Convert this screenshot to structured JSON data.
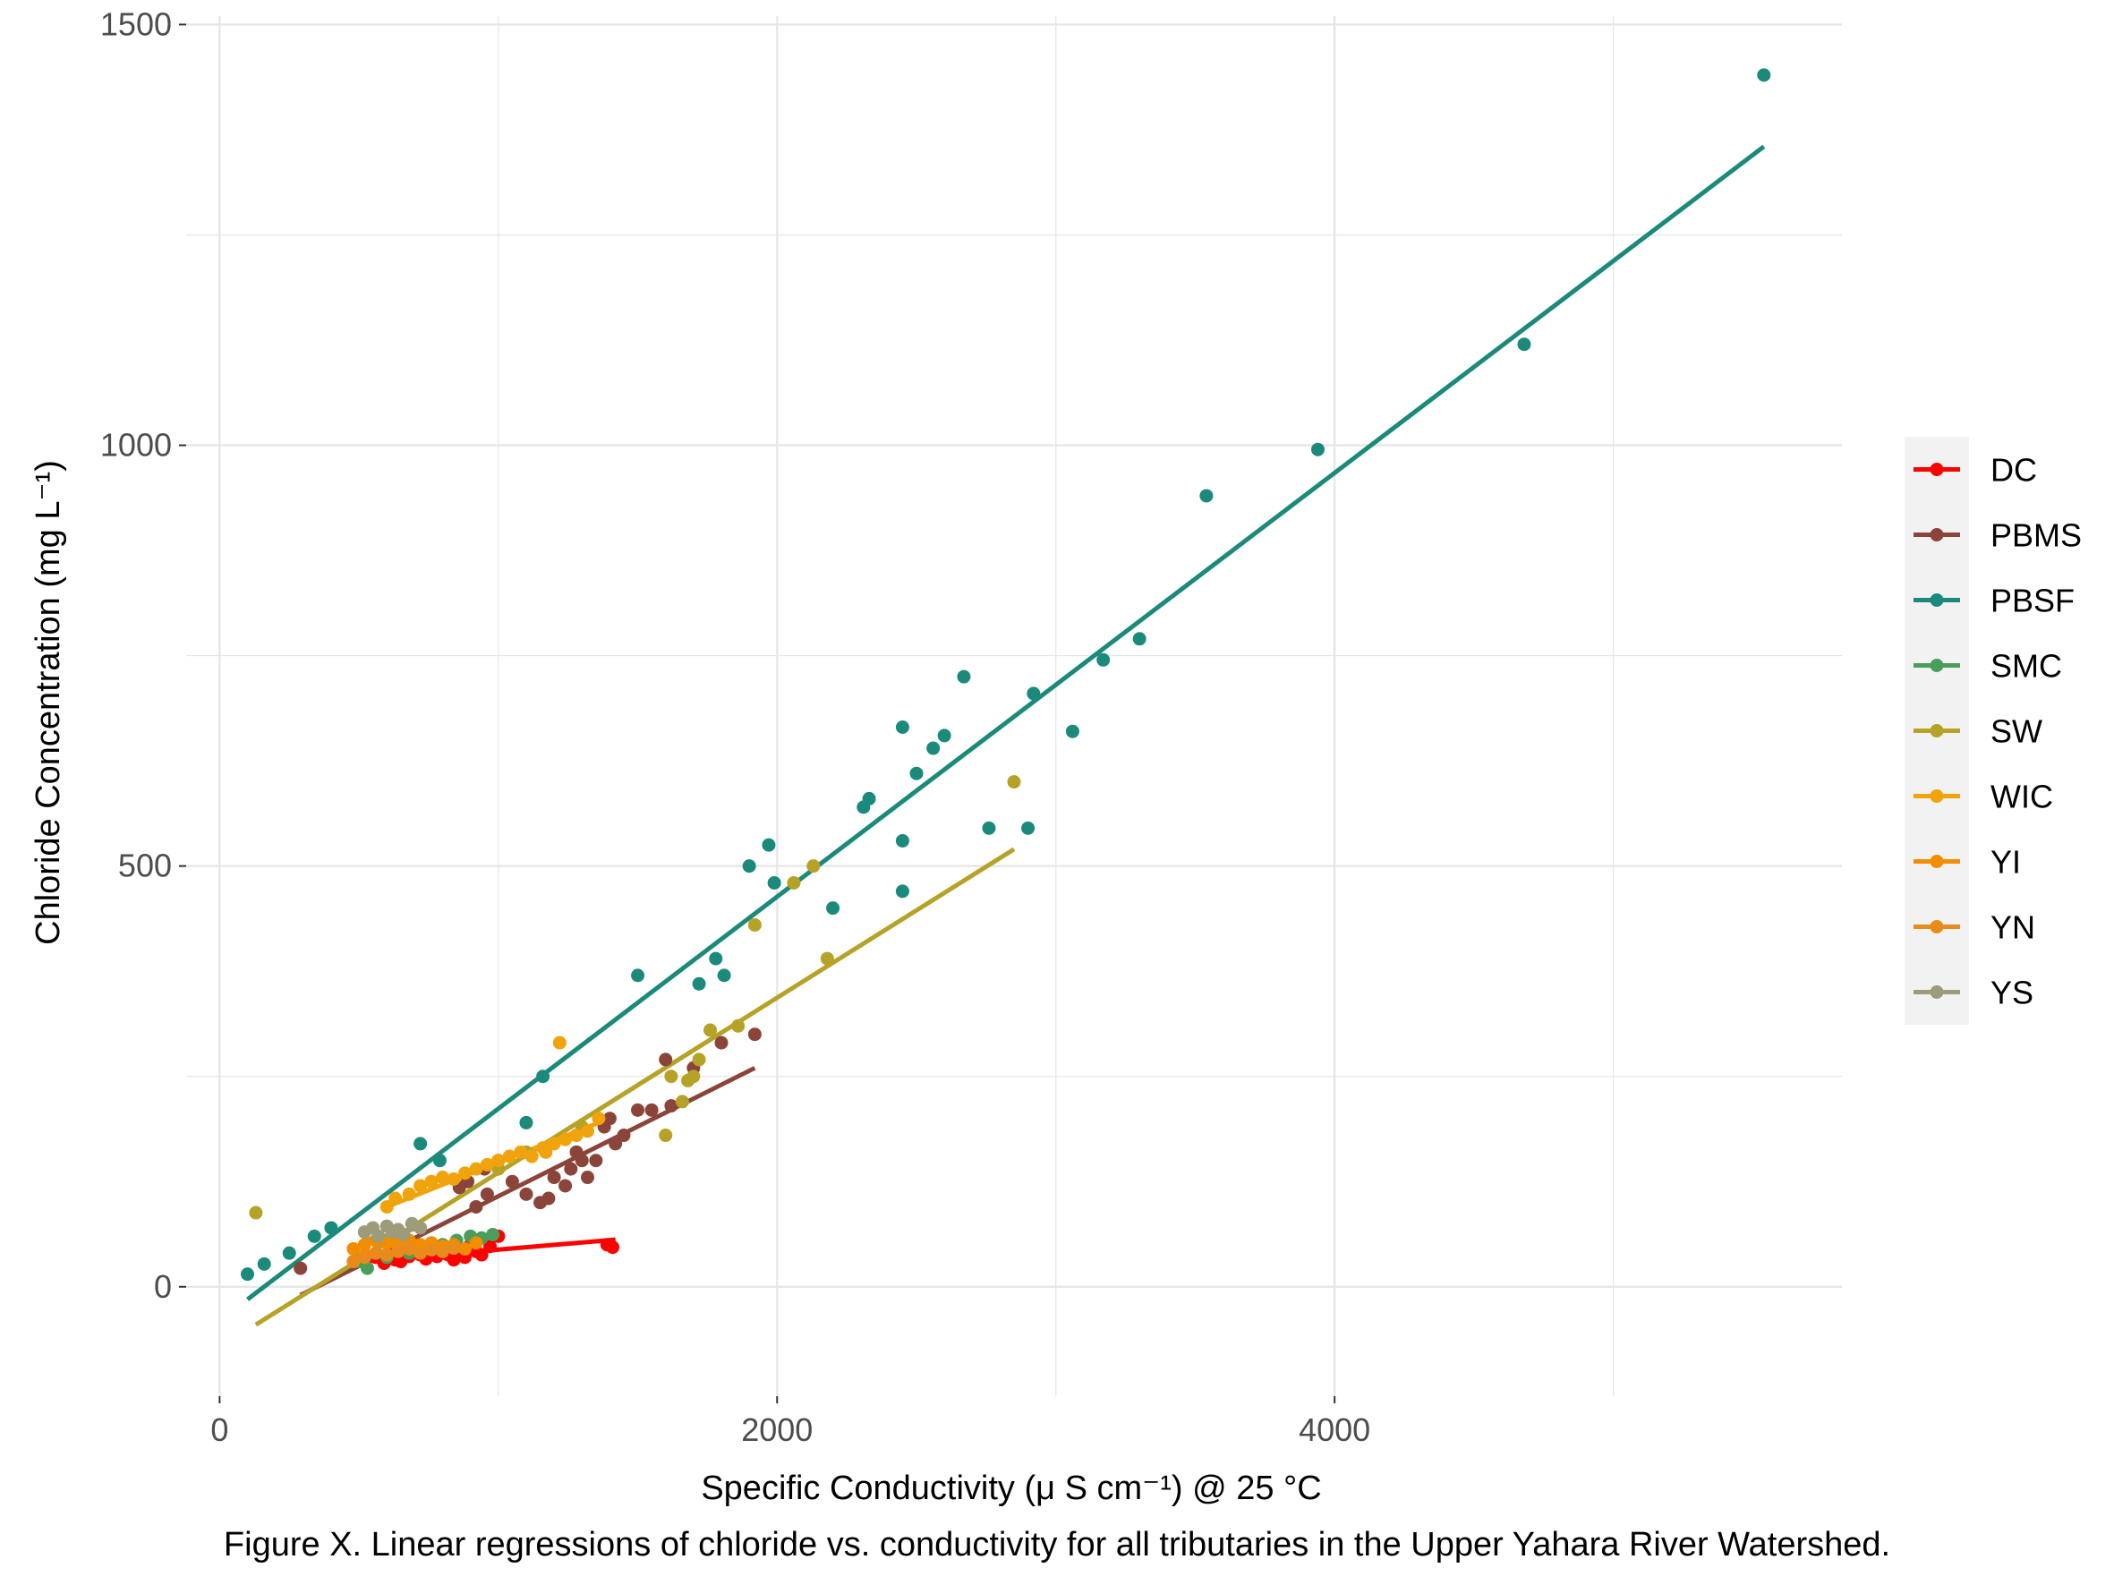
{
  "caption": "Figure X. Linear regressions of chloride vs. conductivity for all tributaries in the Upper Yahara River Watershed.",
  "chart_data": {
    "type": "scatter",
    "title": "",
    "xlabel": "Specific Conductivity (μ S cm⁻¹) @ 25 °C",
    "ylabel": "Chloride Concentration (mg L⁻¹)",
    "xlim": [
      -120,
      5820
    ],
    "ylim": [
      -130,
      1510
    ],
    "x_ticks": [
      0,
      2000,
      4000
    ],
    "x_tick_labels": [
      "0",
      "2000",
      "4000"
    ],
    "y_ticks": [
      0,
      500,
      1000,
      1500
    ],
    "y_tick_labels": [
      "0",
      "500",
      "1000",
      "1500"
    ],
    "grid": true,
    "legend_position": "right",
    "series": [
      {
        "name": "DC",
        "color": "#ff0000",
        "points": [
          [
            520,
            30
          ],
          [
            560,
            35
          ],
          [
            590,
            28
          ],
          [
            610,
            40
          ],
          [
            630,
            32
          ],
          [
            650,
            30
          ],
          [
            680,
            36
          ],
          [
            700,
            42
          ],
          [
            720,
            38
          ],
          [
            740,
            33
          ],
          [
            760,
            40
          ],
          [
            780,
            36
          ],
          [
            800,
            45
          ],
          [
            820,
            38
          ],
          [
            840,
            32
          ],
          [
            860,
            40
          ],
          [
            880,
            35
          ],
          [
            900,
            50
          ],
          [
            920,
            42
          ],
          [
            940,
            38
          ],
          [
            970,
            48
          ],
          [
            1000,
            60
          ],
          [
            1390,
            50
          ],
          [
            1410,
            47
          ]
        ],
        "fit": [
          [
            500,
            30
          ],
          [
            1420,
            56
          ]
        ]
      },
      {
        "name": "PBMS",
        "color": "#8b4439",
        "points": [
          [
            290,
            22
          ],
          [
            860,
            118
          ],
          [
            890,
            125
          ],
          [
            920,
            95
          ],
          [
            960,
            110
          ],
          [
            1050,
            125
          ],
          [
            1100,
            110
          ],
          [
            1150,
            100
          ],
          [
            1180,
            105
          ],
          [
            1200,
            130
          ],
          [
            1240,
            120
          ],
          [
            1260,
            140
          ],
          [
            1280,
            160
          ],
          [
            1300,
            150
          ],
          [
            1320,
            130
          ],
          [
            1350,
            150
          ],
          [
            1380,
            190
          ],
          [
            1400,
            200
          ],
          [
            1420,
            170
          ],
          [
            1450,
            180
          ],
          [
            1500,
            210
          ],
          [
            1550,
            210
          ],
          [
            1600,
            270
          ],
          [
            1620,
            215
          ],
          [
            1700,
            260
          ],
          [
            1800,
            290
          ],
          [
            1920,
            300
          ],
          [
            950,
            140
          ],
          [
            1000,
            150
          ]
        ],
        "fit": [
          [
            290,
            -10
          ],
          [
            1920,
            260
          ]
        ]
      },
      {
        "name": "PBSF",
        "color": "#1b8a7a",
        "points": [
          [
            100,
            15
          ],
          [
            160,
            27
          ],
          [
            250,
            40
          ],
          [
            340,
            60
          ],
          [
            400,
            70
          ],
          [
            720,
            170
          ],
          [
            790,
            150
          ],
          [
            1100,
            195
          ],
          [
            1160,
            250
          ],
          [
            1500,
            370
          ],
          [
            1720,
            360
          ],
          [
            1780,
            390
          ],
          [
            1810,
            370
          ],
          [
            1900,
            500
          ],
          [
            1970,
            525
          ],
          [
            1990,
            480
          ],
          [
            2200,
            450
          ],
          [
            2310,
            570
          ],
          [
            2330,
            580
          ],
          [
            2450,
            665
          ],
          [
            2450,
            530
          ],
          [
            2450,
            470
          ],
          [
            2500,
            610
          ],
          [
            2560,
            640
          ],
          [
            2600,
            655
          ],
          [
            2670,
            725
          ],
          [
            2760,
            545
          ],
          [
            2900,
            545
          ],
          [
            2920,
            705
          ],
          [
            3060,
            660
          ],
          [
            3170,
            745
          ],
          [
            3300,
            770
          ],
          [
            3540,
            940
          ],
          [
            3940,
            995
          ],
          [
            4680,
            1120
          ],
          [
            5540,
            1440
          ]
        ],
        "fit": [
          [
            100,
            -15
          ],
          [
            5540,
            1355
          ]
        ]
      },
      {
        "name": "SMC",
        "color": "#4a9e5c",
        "points": [
          [
            500,
            30
          ],
          [
            530,
            22
          ],
          [
            560,
            40
          ],
          [
            600,
            35
          ],
          [
            640,
            45
          ],
          [
            680,
            40
          ],
          [
            720,
            48
          ],
          [
            760,
            52
          ],
          [
            800,
            50
          ],
          [
            850,
            55
          ],
          [
            900,
            60
          ],
          [
            940,
            58
          ],
          [
            980,
            62
          ]
        ],
        "fit": [
          [
            500,
            30
          ],
          [
            980,
            55
          ]
        ]
      },
      {
        "name": "SW",
        "color": "#b5a227",
        "points": [
          [
            130,
            88
          ],
          [
            1000,
            140
          ],
          [
            1100,
            160
          ],
          [
            1300,
            190
          ],
          [
            1600,
            180
          ],
          [
            1620,
            250
          ],
          [
            1660,
            220
          ],
          [
            1680,
            245
          ],
          [
            1700,
            250
          ],
          [
            1720,
            270
          ],
          [
            1760,
            305
          ],
          [
            1860,
            310
          ],
          [
            1920,
            430
          ],
          [
            2060,
            480
          ],
          [
            2130,
            500
          ],
          [
            2180,
            390
          ],
          [
            2850,
            600
          ]
        ],
        "fit": [
          [
            130,
            -45
          ],
          [
            2850,
            520
          ]
        ]
      },
      {
        "name": "WIC",
        "color": "#f0a30a",
        "points": [
          [
            600,
            95
          ],
          [
            630,
            105
          ],
          [
            680,
            110
          ],
          [
            720,
            120
          ],
          [
            760,
            125
          ],
          [
            800,
            130
          ],
          [
            840,
            128
          ],
          [
            880,
            135
          ],
          [
            920,
            140
          ],
          [
            960,
            145
          ],
          [
            1000,
            150
          ],
          [
            1040,
            155
          ],
          [
            1080,
            160
          ],
          [
            1120,
            155
          ],
          [
            1160,
            165
          ],
          [
            1200,
            170
          ],
          [
            1240,
            175
          ],
          [
            1280,
            180
          ],
          [
            1320,
            185
          ],
          [
            1360,
            200
          ],
          [
            1220,
            290
          ],
          [
            1170,
            160
          ]
        ],
        "fit": [
          [
            600,
            95
          ],
          [
            1360,
            195
          ]
        ]
      },
      {
        "name": "YI",
        "color": "#f28c00",
        "points": [
          [
            480,
            45
          ],
          [
            520,
            50
          ],
          [
            560,
            55
          ],
          [
            600,
            52
          ],
          [
            640,
            50
          ],
          [
            680,
            55
          ],
          [
            720,
            50
          ],
          [
            760,
            52
          ],
          [
            800,
            48
          ],
          [
            840,
            50
          ],
          [
            880,
            45
          ],
          [
            920,
            52
          ]
        ],
        "fit": [
          [
            480,
            40
          ],
          [
            920,
            50
          ]
        ]
      },
      {
        "name": "YN",
        "color": "#e88b1c",
        "points": [
          [
            480,
            30
          ],
          [
            520,
            35
          ],
          [
            560,
            40
          ],
          [
            600,
            38
          ],
          [
            640,
            42
          ],
          [
            680,
            45
          ],
          [
            720,
            40
          ],
          [
            760,
            44
          ],
          [
            800,
            42
          ],
          [
            840,
            46
          ]
        ],
        "fit": [
          [
            480,
            30
          ],
          [
            840,
            45
          ]
        ]
      },
      {
        "name": "YS",
        "color": "#9c9c7a",
        "points": [
          [
            520,
            65
          ],
          [
            550,
            70
          ],
          [
            570,
            60
          ],
          [
            600,
            72
          ],
          [
            620,
            65
          ],
          [
            640,
            68
          ],
          [
            660,
            62
          ],
          [
            690,
            75
          ],
          [
            720,
            70
          ]
        ],
        "fit": [
          [
            520,
            55
          ],
          [
            720,
            70
          ]
        ]
      }
    ]
  }
}
